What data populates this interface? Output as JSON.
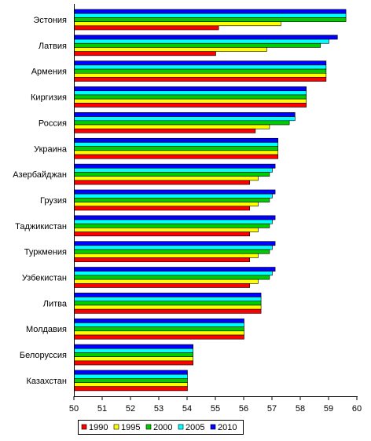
{
  "chart_data": {
    "type": "bar",
    "orientation": "horizontal",
    "categories": [
      "Эстония",
      "Латвия",
      "Армения",
      "Киргизия",
      "Россия",
      "Украина",
      "Азербайджан",
      "Грузия",
      "Таджикистан",
      "Туркмения",
      "Узбекистан",
      "Литва",
      "Молдавия",
      "Белоруссия",
      "Казахстан"
    ],
    "series": [
      {
        "name": "1990",
        "color": "#ff0000",
        "values": [
          55.1,
          55.0,
          58.9,
          58.2,
          56.4,
          57.2,
          56.2,
          56.2,
          56.2,
          56.2,
          56.2,
          56.6,
          56.0,
          54.2,
          54.0
        ]
      },
      {
        "name": "1995",
        "color": "#ffff00",
        "values": [
          57.3,
          56.8,
          58.9,
          58.2,
          56.9,
          57.2,
          56.5,
          56.5,
          56.5,
          56.5,
          56.5,
          56.6,
          56.0,
          54.2,
          54.0
        ]
      },
      {
        "name": "2000",
        "color": "#00cc00",
        "values": [
          59.6,
          58.7,
          58.9,
          58.2,
          57.6,
          57.2,
          56.9,
          56.9,
          56.9,
          56.9,
          56.9,
          56.6,
          56.0,
          54.2,
          54.0
        ]
      },
      {
        "name": "2005",
        "color": "#00ffff",
        "values": [
          59.6,
          59.0,
          58.9,
          58.2,
          57.8,
          57.2,
          57.0,
          57.0,
          57.0,
          57.0,
          57.0,
          56.6,
          56.0,
          54.2,
          54.0
        ]
      },
      {
        "name": "2010",
        "color": "#0000ff",
        "values": [
          59.6,
          59.3,
          58.9,
          58.2,
          57.8,
          57.2,
          57.1,
          57.1,
          57.1,
          57.1,
          57.1,
          56.6,
          56.0,
          54.2,
          54.0
        ]
      }
    ],
    "xlim": [
      50,
      60
    ],
    "xticks": [
      "50",
      "51",
      "52",
      "53",
      "54",
      "55",
      "56",
      "57",
      "58",
      "59",
      "60"
    ],
    "grid": false,
    "legend_position": "bottom-center",
    "title": "",
    "xlabel": "",
    "ylabel": ""
  }
}
